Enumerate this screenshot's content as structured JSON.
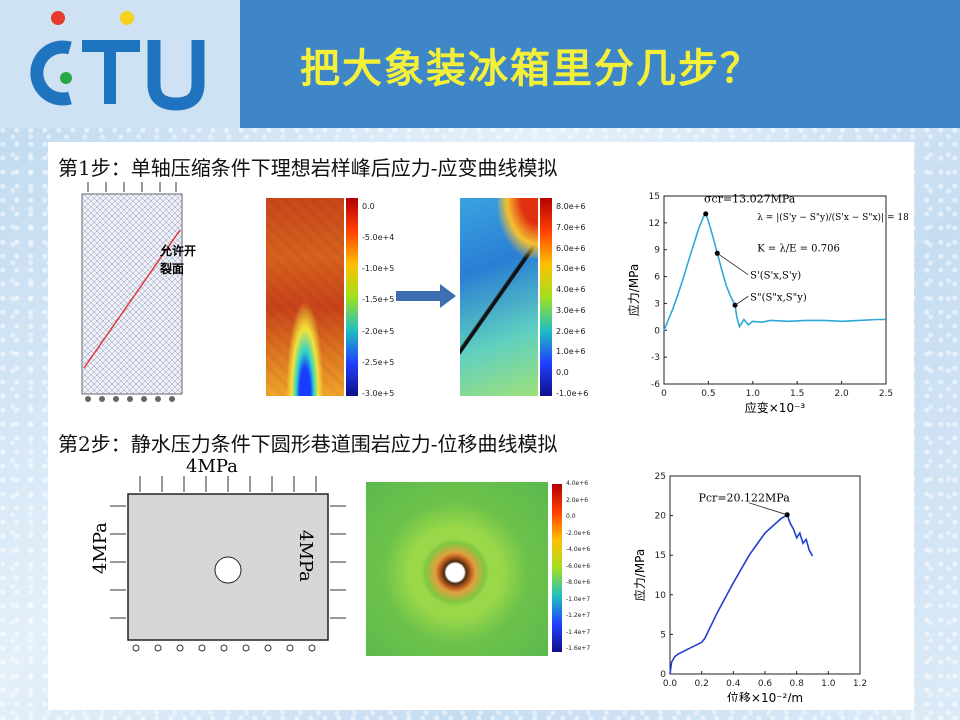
{
  "slide": {
    "title": "把大象装冰箱里分几步？",
    "logo_text": "CTU"
  },
  "step1": {
    "heading": "第1步：单轴压缩条件下理想岩样峰后应力-应变曲线模拟",
    "crack_label_line1": "允许开",
    "crack_label_line2": "裂面",
    "colorbar_left": [
      "0.0",
      "-5.0e+4",
      "-1.0e+5",
      "-1.5e+5",
      "-2.0e+5",
      "-2.5e+5",
      "-3.0e+5"
    ],
    "colorbar_right": [
      "8.0e+6",
      "7.0e+6",
      "6.0e+6",
      "5.0e+6",
      "4.0e+6",
      "3.0e+6",
      "2.0e+6",
      "1.0e+6",
      "0.0",
      "-1.0e+6"
    ],
    "chart": {
      "peak_label": "σcr=13.027MPa",
      "lambda_label": "λ = |(S'y − S\"y)/(S'x − S\"x)| = 18.769GPa",
      "k_label": "K = λ/E = 0.706",
      "point1_label": "S'(S'x,S'y)",
      "point2_label": "S\"(S\"x,S\"y)"
    }
  },
  "step2": {
    "heading": "第2步：静水压力条件下圆形巷道围岩应力-位移曲线模拟",
    "load_top": "4MPa",
    "load_left": "4MPa",
    "load_right": "4MPa",
    "colorbar": [
      "4.0e+6",
      "2.0e+6",
      "0.0",
      "-2.0e+6",
      "-4.0e+6",
      "-6.0e+6",
      "-8.0e+6",
      "-1.0e+7",
      "-1.2e+7",
      "-1.4e+7",
      "-1.6e+7"
    ],
    "chart": {
      "peak_label": "Pcr=20.122MPa"
    }
  },
  "chart_data": [
    {
      "type": "line",
      "title": "",
      "xlabel": "应变×10⁻³",
      "ylabel": "应力/MPa",
      "xlim": [
        0,
        2.5
      ],
      "ylim": [
        -6,
        15
      ],
      "xticks": [
        "0",
        "0.5",
        "1.0",
        "1.5",
        "2.0",
        "2.5"
      ],
      "yticks": [
        "15",
        "12",
        "9",
        "6",
        "3",
        "0",
        "-3",
        "-6"
      ],
      "series": [
        {
          "x": [
            0,
            0.05,
            0.1,
            0.15,
            0.2,
            0.25,
            0.3,
            0.35,
            0.4,
            0.45,
            0.47,
            0.5,
            0.55,
            0.6,
            0.65,
            0.7,
            0.75,
            0.8,
            0.82,
            0.85,
            0.9,
            0.95,
            1.0,
            1.1,
            1.2,
            1.4,
            1.6,
            1.8,
            2.0,
            2.2,
            2.4,
            2.5
          ],
          "y": [
            0,
            1.2,
            2.4,
            3.8,
            5.3,
            6.9,
            8.5,
            10.1,
            11.6,
            12.8,
            13.0,
            12.2,
            10.5,
            8.6,
            6.8,
            5.0,
            3.8,
            2.8,
            1.5,
            0.4,
            1.2,
            0.6,
            1.0,
            0.9,
            1.1,
            1.0,
            1.1,
            1.1,
            1.0,
            1.1,
            1.2,
            1.2
          ]
        }
      ]
    },
    {
      "type": "line",
      "title": "",
      "xlabel": "位移×10⁻²/m",
      "ylabel": "应力/MPa",
      "xlim": [
        0,
        1.2
      ],
      "ylim": [
        0,
        25
      ],
      "xticks": [
        "0.0",
        "0.2",
        "0.4",
        "0.6",
        "0.8",
        "1.0",
        "1.2"
      ],
      "yticks": [
        "25",
        "20",
        "15",
        "10",
        "5",
        "0"
      ],
      "series": [
        {
          "x": [
            0,
            0.01,
            0.03,
            0.05,
            0.1,
            0.2,
            0.22,
            0.3,
            0.4,
            0.5,
            0.6,
            0.7,
            0.74,
            0.76,
            0.78,
            0.8,
            0.82,
            0.84,
            0.86,
            0.88,
            0.9
          ],
          "y": [
            0,
            1.5,
            2.2,
            2.5,
            3.0,
            4.0,
            4.5,
            7.8,
            11.5,
            15.0,
            17.8,
            19.6,
            20.1,
            19.0,
            18.3,
            17.2,
            17.8,
            16.5,
            17.0,
            15.6,
            14.9
          ]
        }
      ]
    }
  ]
}
